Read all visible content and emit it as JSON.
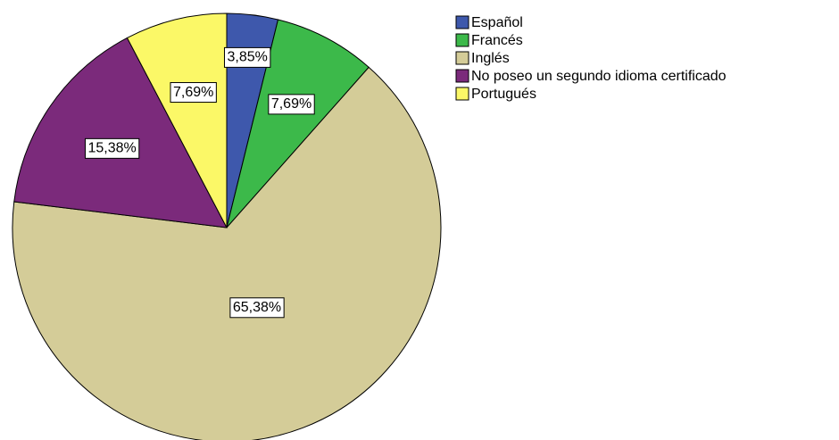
{
  "chart_data": {
    "type": "pie",
    "categories": [
      "Español",
      "Francés",
      "Inglés",
      "No poseo un segundo idioma certificado",
      "Portugués"
    ],
    "values": [
      3.85,
      7.69,
      65.38,
      15.38,
      7.69
    ],
    "value_labels": [
      "3,85%",
      "7,69%",
      "65,38%",
      "15,38%",
      "7,69%"
    ],
    "colors": [
      "#3e58ac",
      "#3cb94a",
      "#d4cc98",
      "#7b2a7b",
      "#fbf867"
    ],
    "legend": "right"
  }
}
